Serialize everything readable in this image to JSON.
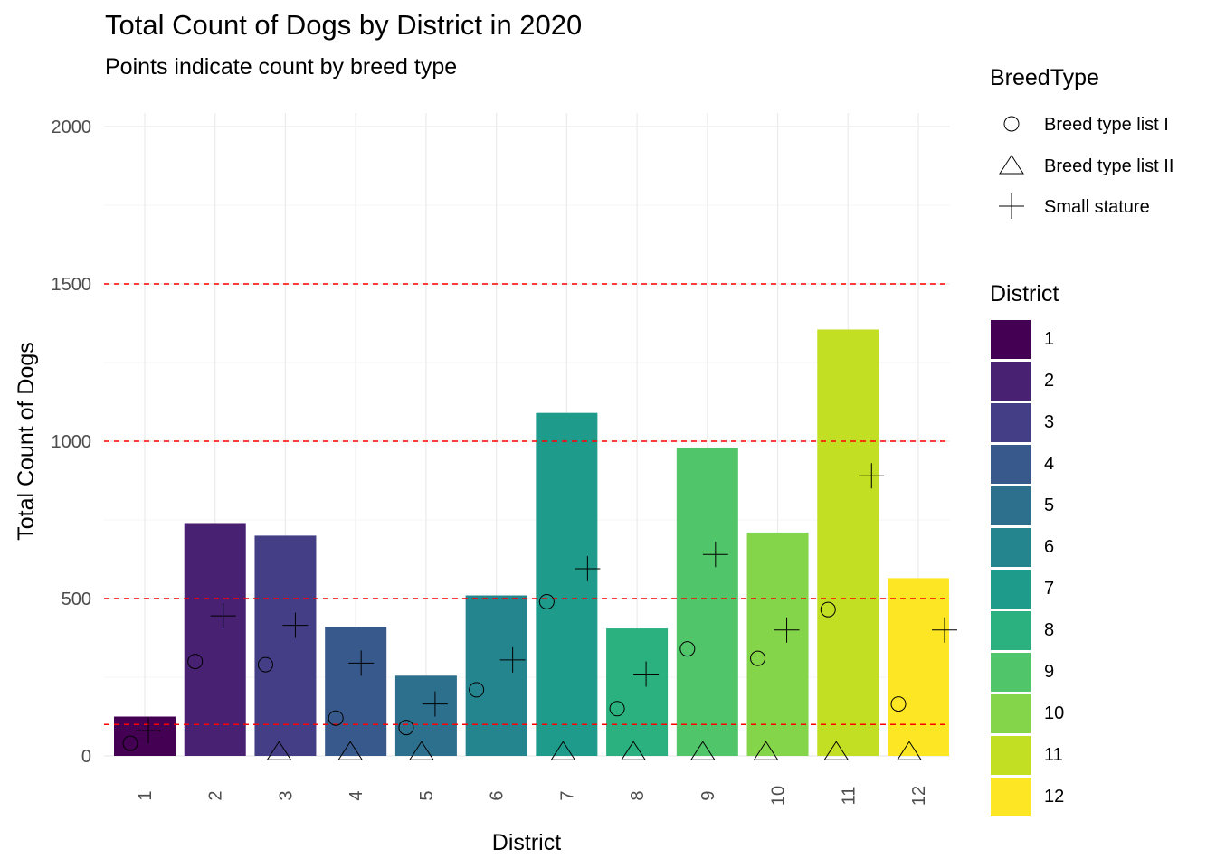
{
  "chart_data": {
    "type": "bar",
    "title": "Total Count of Dogs by District in 2020",
    "subtitle": "Points indicate count by breed type",
    "xlabel": "District",
    "ylabel": "Total Count of Dogs",
    "categories": [
      "1",
      "2",
      "3",
      "4",
      "5",
      "6",
      "7",
      "8",
      "9",
      "10",
      "11",
      "12"
    ],
    "totals": [
      125,
      740,
      700,
      410,
      255,
      510,
      1090,
      405,
      980,
      710,
      1355,
      565
    ],
    "bar_colors": [
      "#440154",
      "#482173",
      "#433E85",
      "#38598C",
      "#2D708E",
      "#25858E",
      "#1E9B8A",
      "#2BB07F",
      "#51C56A",
      "#85D54A",
      "#C2DF23",
      "#FDE725"
    ],
    "ylim": [
      0,
      2000
    ],
    "yticks": [
      0,
      500,
      1000,
      1500,
      2000
    ],
    "reference_lines": [
      100,
      500,
      1000,
      1500
    ],
    "reference_line_color": "#FF0000",
    "grid": true,
    "series": [
      {
        "name": "Breed type list I",
        "shape": "circle",
        "values": [
          40,
          300,
          290,
          120,
          90,
          210,
          490,
          150,
          340,
          310,
          465,
          165
        ]
      },
      {
        "name": "Breed type list II",
        "shape": "triangle",
        "values": [
          null,
          null,
          5,
          5,
          5,
          null,
          5,
          5,
          5,
          5,
          5,
          5
        ]
      },
      {
        "name": "Small stature",
        "shape": "plus",
        "values": [
          80,
          445,
          415,
          295,
          165,
          305,
          595,
          260,
          640,
          400,
          890,
          400
        ]
      }
    ],
    "legend_position": "right"
  },
  "legend": {
    "breed_title": "BreedType",
    "breed_items": [
      "Breed type list I",
      "Breed type list II",
      "Small stature"
    ],
    "district_title": "District",
    "district_items": [
      "1",
      "2",
      "3",
      "4",
      "5",
      "6",
      "7",
      "8",
      "9",
      "10",
      "11",
      "12"
    ]
  }
}
